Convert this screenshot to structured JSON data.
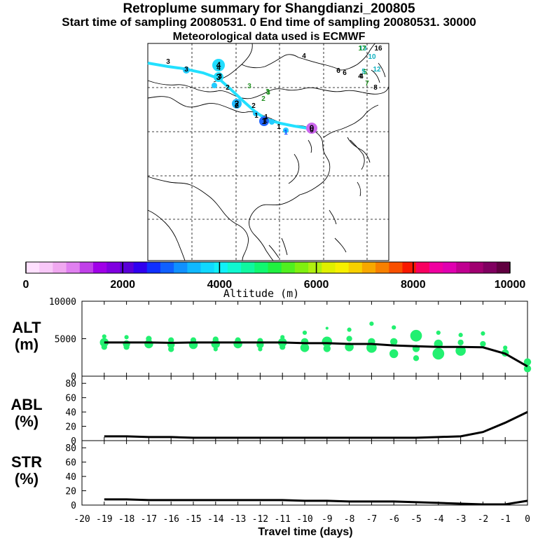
{
  "header": {
    "title": "Retroplume summary for Shangdianzi_200805",
    "sampling": "Start time of sampling 20080531.    0     End time of sampling 20080531. 30000",
    "met": "Meteorological data used is ECMWF"
  },
  "chart_data": {
    "type": "retroplume-summary",
    "map": {
      "track_labels": [
        "0",
        "1",
        "1",
        "1",
        "1",
        "1",
        "2",
        "2",
        "2",
        "3",
        "3",
        "3",
        "3",
        "4",
        "4",
        "3",
        "2",
        "3",
        "4",
        "5",
        "6",
        "7",
        "8",
        "10",
        "12",
        "13",
        "16",
        "17",
        "6",
        "5",
        "4"
      ],
      "trajectory_points": [
        {
          "day": 0,
          "label": "0",
          "color": "#cc66ee"
        },
        {
          "day": 1,
          "label": "1",
          "color": "#2266ff"
        },
        {
          "day": 2,
          "label": "2",
          "color": "#22bbff"
        },
        {
          "day": 3,
          "label": "3",
          "color": "#22ddff"
        },
        {
          "day": 4,
          "label": "4",
          "color": "#22ddff"
        }
      ]
    },
    "colorbar": {
      "label": "Altitude (m)",
      "tick_labels": [
        "0",
        "2000",
        "4000",
        "6000",
        "8000",
        "10000"
      ],
      "range": [
        0,
        10000
      ],
      "colors": [
        "#ffe0ff",
        "#f8c8f8",
        "#f0a8f0",
        "#e080f0",
        "#c040e8",
        "#a000e8",
        "#8000e0",
        "#5a00d8",
        "#3000f0",
        "#1030ff",
        "#1060ff",
        "#1090ff",
        "#10b8ff",
        "#10d8ff",
        "#10f0f8",
        "#10f8d0",
        "#10f8a0",
        "#10f870",
        "#20f040",
        "#50f020",
        "#80f010",
        "#b0f010",
        "#e0f000",
        "#f8f000",
        "#f8d000",
        "#f8a800",
        "#f88000",
        "#f85000",
        "#f81800",
        "#f80060",
        "#f000a0",
        "#e000b0",
        "#c00090",
        "#a00070",
        "#800060",
        "#600040"
      ]
    },
    "alt_panel": {
      "ylabel": "ALT (m)",
      "ylim": [
        0,
        10000
      ],
      "yticks": [
        "10000",
        "5000",
        "0"
      ],
      "line": {
        "x": [
          -19,
          -18,
          -17,
          -16,
          -15,
          -14,
          -13,
          -12,
          -11,
          -10,
          -9,
          -8,
          -7,
          -6,
          -5,
          -4,
          -3,
          -2,
          -1,
          0
        ],
        "y": [
          4500,
          4500,
          4500,
          4450,
          4500,
          4500,
          4500,
          4500,
          4500,
          4400,
          4400,
          4300,
          4300,
          4100,
          4000,
          3900,
          3900,
          3850,
          3000,
          1300
        ]
      },
      "points": [
        {
          "x": -19,
          "y": 5300,
          "s": 2
        },
        {
          "x": -19,
          "y": 4500,
          "s": 5
        },
        {
          "x": -19,
          "y": 3900,
          "s": 3
        },
        {
          "x": -18,
          "y": 5200,
          "s": 2
        },
        {
          "x": -18,
          "y": 4300,
          "s": 4
        },
        {
          "x": -18,
          "y": 3900,
          "s": 3
        },
        {
          "x": -17,
          "y": 5000,
          "s": 3
        },
        {
          "x": -17,
          "y": 4300,
          "s": 5
        },
        {
          "x": -16,
          "y": 4800,
          "s": 3
        },
        {
          "x": -16,
          "y": 4200,
          "s": 4
        },
        {
          "x": -16,
          "y": 3600,
          "s": 3
        },
        {
          "x": -15,
          "y": 4800,
          "s": 3
        },
        {
          "x": -15,
          "y": 4200,
          "s": 5
        },
        {
          "x": -14,
          "y": 4900,
          "s": 3
        },
        {
          "x": -14,
          "y": 4300,
          "s": 5
        },
        {
          "x": -14,
          "y": 3600,
          "s": 2
        },
        {
          "x": -13,
          "y": 4800,
          "s": 3
        },
        {
          "x": -13,
          "y": 4300,
          "s": 5
        },
        {
          "x": -12,
          "y": 4700,
          "s": 3
        },
        {
          "x": -12,
          "y": 4200,
          "s": 4
        },
        {
          "x": -12,
          "y": 3600,
          "s": 2
        },
        {
          "x": -11,
          "y": 5200,
          "s": 2
        },
        {
          "x": -11,
          "y": 4500,
          "s": 5
        },
        {
          "x": -11,
          "y": 3900,
          "s": 3
        },
        {
          "x": -10,
          "y": 5800,
          "s": 2
        },
        {
          "x": -10,
          "y": 4600,
          "s": 4
        },
        {
          "x": -10,
          "y": 3800,
          "s": 5
        },
        {
          "x": -9,
          "y": 6400,
          "s": 1
        },
        {
          "x": -9,
          "y": 4600,
          "s": 6
        },
        {
          "x": -9,
          "y": 3700,
          "s": 4
        },
        {
          "x": -8,
          "y": 6200,
          "s": 2
        },
        {
          "x": -8,
          "y": 5000,
          "s": 3
        },
        {
          "x": -8,
          "y": 3900,
          "s": 5
        },
        {
          "x": -7,
          "y": 7000,
          "s": 2
        },
        {
          "x": -7,
          "y": 4600,
          "s": 4
        },
        {
          "x": -7,
          "y": 3800,
          "s": 6
        },
        {
          "x": -6,
          "y": 6500,
          "s": 2
        },
        {
          "x": -6,
          "y": 4600,
          "s": 4
        },
        {
          "x": -6,
          "y": 3000,
          "s": 5
        },
        {
          "x": -5,
          "y": 5400,
          "s": 7
        },
        {
          "x": -5,
          "y": 3700,
          "s": 4
        },
        {
          "x": -5,
          "y": 2400,
          "s": 3
        },
        {
          "x": -4,
          "y": 5800,
          "s": 2
        },
        {
          "x": -4,
          "y": 4300,
          "s": 5
        },
        {
          "x": -4,
          "y": 3000,
          "s": 7
        },
        {
          "x": -3,
          "y": 5500,
          "s": 2
        },
        {
          "x": -3,
          "y": 4500,
          "s": 3
        },
        {
          "x": -3,
          "y": 3400,
          "s": 6
        },
        {
          "x": -2,
          "y": 5700,
          "s": 2
        },
        {
          "x": -2,
          "y": 4300,
          "s": 3
        },
        {
          "x": -1,
          "y": 3800,
          "s": 2
        },
        {
          "x": -1,
          "y": 3100,
          "s": 4
        },
        {
          "x": 0,
          "y": 1900,
          "s": 4
        },
        {
          "x": 0,
          "y": 1000,
          "s": 4
        }
      ]
    },
    "abl_panel": {
      "ylabel": "ABL (%)",
      "ylim": [
        0,
        90
      ],
      "yticks": [
        "80",
        "60",
        "40",
        "20",
        "0"
      ],
      "line": {
        "x": [
          -19,
          -18,
          -17,
          -16,
          -15,
          -14,
          -13,
          -12,
          -11,
          -10,
          -9,
          -8,
          -7,
          -6,
          -5,
          -4,
          -3,
          -2,
          -1,
          0
        ],
        "y": [
          6,
          6,
          5,
          5,
          4,
          4,
          4,
          4,
          4,
          4,
          4,
          4,
          4,
          4,
          4,
          5,
          6,
          12,
          25,
          40
        ]
      }
    },
    "str_panel": {
      "ylabel": "STR (%)",
      "ylim": [
        0,
        90
      ],
      "yticks": [
        "80",
        "60",
        "40",
        "20",
        "0"
      ],
      "line": {
        "x": [
          -19,
          -18,
          -17,
          -16,
          -15,
          -14,
          -13,
          -12,
          -11,
          -10,
          -9,
          -8,
          -7,
          -6,
          -5,
          -4,
          -3,
          -2,
          -1,
          0
        ],
        "y": [
          8,
          8,
          7,
          7,
          7,
          7,
          7,
          7,
          7,
          6,
          6,
          5,
          5,
          5,
          4,
          3,
          2,
          1,
          1,
          6
        ]
      }
    },
    "xaxis": {
      "xlabel": "Travel time (days)",
      "ticks": [
        "-20",
        "-19",
        "-18",
        "-17",
        "-16",
        "-15",
        "-14",
        "-13",
        "-12",
        "-11",
        "-10",
        "-9",
        "-8",
        "-7",
        "-6",
        "-5",
        "-4",
        "-3",
        "-2",
        "-1",
        "0"
      ],
      "range": [
        -20,
        0
      ]
    }
  }
}
